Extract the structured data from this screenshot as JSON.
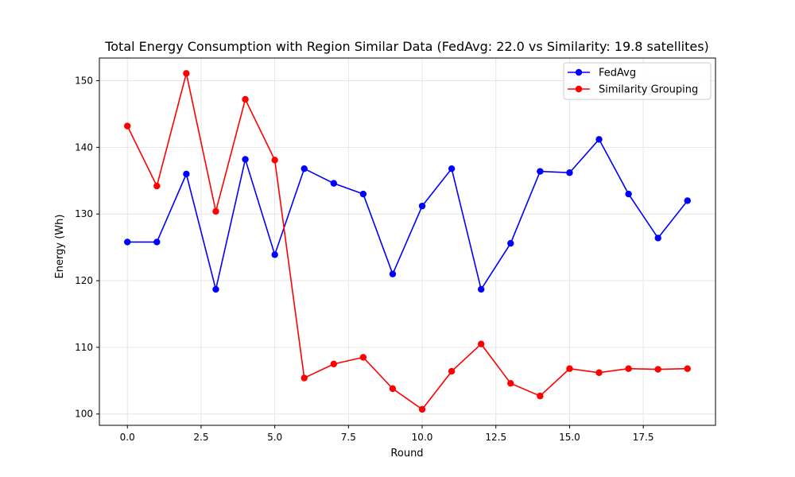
{
  "chart_data": {
    "type": "line",
    "title": "Total Energy Consumption with Region Similar Data (FedAvg: 22.0 vs Similarity: 19.8 satellites)",
    "xlabel": "Round",
    "ylabel": "Energy (Wh)",
    "xlim": [
      -0.95,
      19.95
    ],
    "ylim": [
      98.3,
      153.4
    ],
    "xticks": [
      0.0,
      2.5,
      5.0,
      7.5,
      10.0,
      12.5,
      15.0,
      17.5
    ],
    "xtick_labels": [
      "0.0",
      "2.5",
      "5.0",
      "7.5",
      "10.0",
      "12.5",
      "15.0",
      "17.5"
    ],
    "yticks": [
      100,
      110,
      120,
      130,
      140,
      150
    ],
    "ytick_labels": [
      "100",
      "110",
      "120",
      "130",
      "140",
      "150"
    ],
    "grid": true,
    "legend_position": "top-right",
    "x": [
      0,
      1,
      2,
      3,
      4,
      5,
      6,
      7,
      8,
      9,
      10,
      11,
      12,
      13,
      14,
      15,
      16,
      17,
      18,
      19
    ],
    "series": [
      {
        "name": "FedAvg",
        "color": "#0000ff",
        "values": [
          125.8,
          125.8,
          136.0,
          118.7,
          138.2,
          123.9,
          136.8,
          134.6,
          133.0,
          121.0,
          131.2,
          136.8,
          118.7,
          125.6,
          136.4,
          136.2,
          141.2,
          133.0,
          126.4,
          132.0
        ]
      },
      {
        "name": "Similarity Grouping",
        "color": "#ff0000",
        "values": [
          143.2,
          134.2,
          151.1,
          130.4,
          147.2,
          138.1,
          105.4,
          107.5,
          108.5,
          103.8,
          100.7,
          106.4,
          110.5,
          104.6,
          102.7,
          106.8,
          106.2,
          106.8,
          106.7,
          106.8
        ]
      }
    ]
  }
}
